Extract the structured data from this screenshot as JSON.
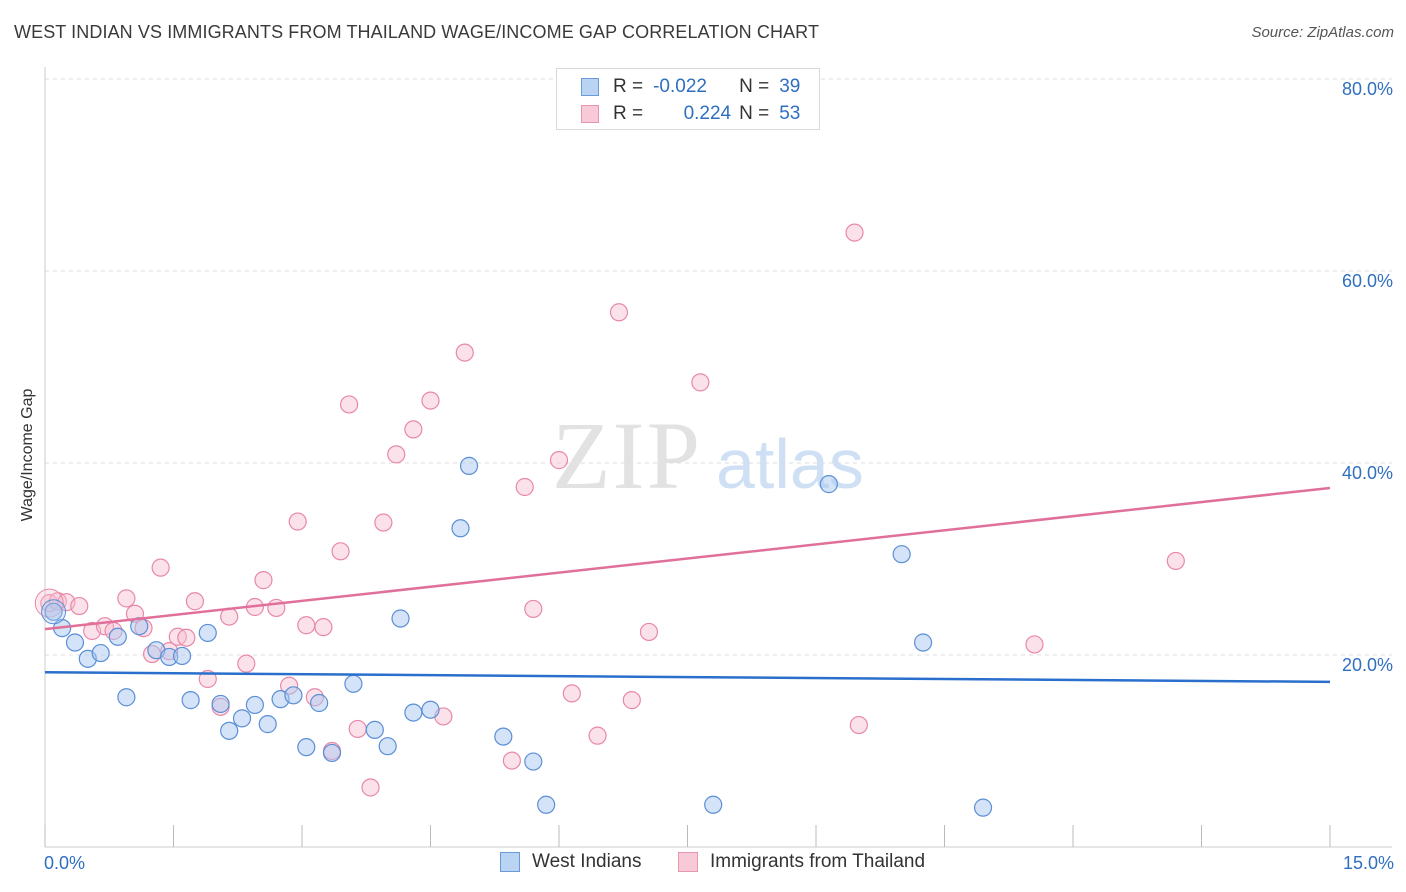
{
  "header": {
    "title": "WEST INDIAN VS IMMIGRANTS FROM THAILAND WAGE/INCOME GAP CORRELATION CHART",
    "source": "Source: ZipAtlas.com"
  },
  "watermark": {
    "zip": "ZIP",
    "atlas": "atlas"
  },
  "legend": {
    "rows": [
      {
        "r_label": "R =",
        "r_value": "-0.022",
        "n_label": "N =",
        "n_value": "39"
      },
      {
        "r_label": "R =",
        "r_value": "0.224",
        "n_label": "N =",
        "n_value": "53"
      }
    ]
  },
  "bottom_legend": {
    "series1": "West Indians",
    "series2": "Immigrants from Thailand"
  },
  "x_axis": {
    "min_label": "0.0%",
    "max_label": "15.0%"
  },
  "colors": {
    "blue_fill": "#aac8f0",
    "blue_stroke": "#5b8fd6",
    "blue_line": "#2a6fcc",
    "pink_fill": "#f6bfd0",
    "pink_stroke": "#e888a8",
    "pink_line": "#e0709a",
    "axis_text": "#2f6fc0",
    "grid": "#dedede"
  },
  "chart_data": {
    "type": "scatter",
    "title": "WEST INDIAN VS IMMIGRANTS FROM THAILAND WAGE/INCOME GAP CORRELATION CHART",
    "xlabel": "",
    "ylabel": "Wage/Income Gap",
    "xlim": [
      0,
      15
    ],
    "ylim": [
      0,
      80
    ],
    "y_ticks": [
      20,
      40,
      60,
      80
    ],
    "y_tick_labels": [
      "20.0%",
      "40.0%",
      "60.0%",
      "80.0%"
    ],
    "x_tick_values": [
      0,
      1.5,
      3,
      4.5,
      6,
      7.5,
      9,
      10.5,
      12,
      13.5,
      15
    ],
    "series": [
      {
        "name": "West Indians",
        "R": -0.022,
        "N": 39,
        "trend": {
          "x": [
            0,
            15
          ],
          "y": [
            18.2,
            17.2
          ]
        },
        "points": [
          [
            0.1,
            24.5
          ],
          [
            0.2,
            22.8
          ],
          [
            0.35,
            21.3
          ],
          [
            0.5,
            19.6
          ],
          [
            0.65,
            20.2
          ],
          [
            0.85,
            21.9
          ],
          [
            0.95,
            15.6
          ],
          [
            1.1,
            23.0
          ],
          [
            1.3,
            20.5
          ],
          [
            1.45,
            19.8
          ],
          [
            1.6,
            19.9
          ],
          [
            1.7,
            15.3
          ],
          [
            1.9,
            22.3
          ],
          [
            2.05,
            14.9
          ],
          [
            2.15,
            12.1
          ],
          [
            2.3,
            13.4
          ],
          [
            2.45,
            14.8
          ],
          [
            2.6,
            12.8
          ],
          [
            2.75,
            15.4
          ],
          [
            2.9,
            15.8
          ],
          [
            3.05,
            10.4
          ],
          [
            3.2,
            15.0
          ],
          [
            3.35,
            9.8
          ],
          [
            3.6,
            17.0
          ],
          [
            3.85,
            12.2
          ],
          [
            4.0,
            10.5
          ],
          [
            4.15,
            23.8
          ],
          [
            4.3,
            14.0
          ],
          [
            4.5,
            14.3
          ],
          [
            4.85,
            33.2
          ],
          [
            4.95,
            39.7
          ],
          [
            5.35,
            11.5
          ],
          [
            5.7,
            8.9
          ],
          [
            5.85,
            4.4
          ],
          [
            7.8,
            4.4
          ],
          [
            9.15,
            37.8
          ],
          [
            10.0,
            30.5
          ],
          [
            10.25,
            21.3
          ],
          [
            10.95,
            4.1
          ]
        ]
      },
      {
        "name": "Immigrants from Thailand",
        "R": 0.224,
        "N": 53,
        "trend": {
          "x": [
            0,
            15
          ],
          "y": [
            22.7,
            37.4
          ]
        },
        "points": [
          [
            0.05,
            25.4
          ],
          [
            0.15,
            25.6
          ],
          [
            0.25,
            25.5
          ],
          [
            0.4,
            25.1
          ],
          [
            0.55,
            22.5
          ],
          [
            0.7,
            23.0
          ],
          [
            0.8,
            22.5
          ],
          [
            0.95,
            25.9
          ],
          [
            1.05,
            24.3
          ],
          [
            1.15,
            22.8
          ],
          [
            1.25,
            20.1
          ],
          [
            1.35,
            29.1
          ],
          [
            1.45,
            20.4
          ],
          [
            1.55,
            21.9
          ],
          [
            1.65,
            21.8
          ],
          [
            1.75,
            25.6
          ],
          [
            1.9,
            17.5
          ],
          [
            2.05,
            14.6
          ],
          [
            2.15,
            24.0
          ],
          [
            2.35,
            19.1
          ],
          [
            2.45,
            25.0
          ],
          [
            2.55,
            27.8
          ],
          [
            2.7,
            24.9
          ],
          [
            2.85,
            16.8
          ],
          [
            2.95,
            33.9
          ],
          [
            3.05,
            23.1
          ],
          [
            3.15,
            15.6
          ],
          [
            3.25,
            22.9
          ],
          [
            3.35,
            10.0
          ],
          [
            3.45,
            30.8
          ],
          [
            3.55,
            46.1
          ],
          [
            3.65,
            12.3
          ],
          [
            3.8,
            6.2
          ],
          [
            3.95,
            33.8
          ],
          [
            4.1,
            40.9
          ],
          [
            4.3,
            43.5
          ],
          [
            4.5,
            46.5
          ],
          [
            4.65,
            13.6
          ],
          [
            4.9,
            51.5
          ],
          [
            5.45,
            9.0
          ],
          [
            5.6,
            37.5
          ],
          [
            5.7,
            24.8
          ],
          [
            6.0,
            40.3
          ],
          [
            6.15,
            16.0
          ],
          [
            6.45,
            11.6
          ],
          [
            6.7,
            55.7
          ],
          [
            6.85,
            15.3
          ],
          [
            7.05,
            22.4
          ],
          [
            7.65,
            48.4
          ],
          [
            9.45,
            64.0
          ],
          [
            9.5,
            12.7
          ],
          [
            11.55,
            21.1
          ],
          [
            13.2,
            29.8
          ]
        ]
      }
    ]
  }
}
